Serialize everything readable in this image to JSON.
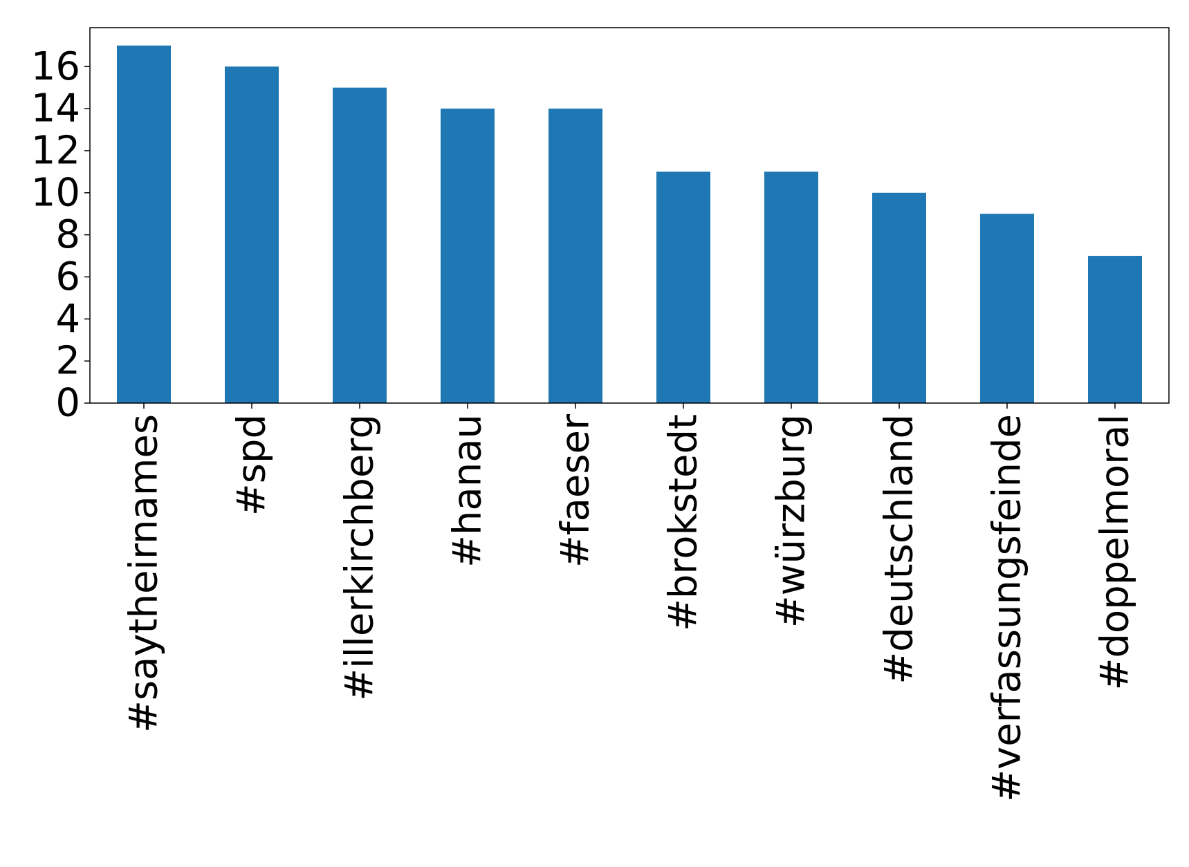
{
  "chart_data": {
    "type": "bar",
    "categories": [
      "#saytheirnames",
      "#spd",
      "#illerkirchberg",
      "#hanau",
      "#faeser",
      "#brokstedt",
      "#würzburg",
      "#deutschland",
      "#verfassungsfeinde",
      "#doppelmoral"
    ],
    "values": [
      17,
      16,
      15,
      14,
      14,
      11,
      11,
      10,
      9,
      7
    ],
    "title": "",
    "xlabel": "",
    "ylabel": "",
    "ylim": [
      0,
      17.85
    ],
    "yticks": [
      0,
      2,
      4,
      6,
      8,
      10,
      12,
      14,
      16
    ],
    "grid": false,
    "legend": "none",
    "bar_color": "#1f77b4"
  }
}
